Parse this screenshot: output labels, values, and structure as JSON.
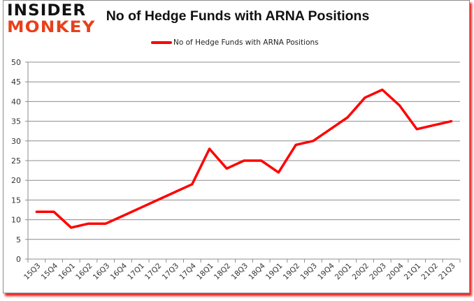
{
  "logo": {
    "line1": "INSIDER",
    "line2": "MONKEY"
  },
  "chart_data": {
    "type": "line",
    "title": "No of Hedge Funds with ARNA Positions",
    "xlabel": "",
    "ylabel": "",
    "ylim": [
      0,
      50
    ],
    "yticks": [
      0,
      5,
      10,
      15,
      20,
      25,
      30,
      35,
      40,
      45,
      50
    ],
    "grid": true,
    "legend_position": "top",
    "categories": [
      "15Q3",
      "15Q4",
      "16Q1",
      "16Q2",
      "16Q3",
      "16Q4",
      "17Q1",
      "17Q2",
      "17Q3",
      "17Q4",
      "18Q1",
      "18Q2",
      "18Q3",
      "18Q4",
      "19Q1",
      "19Q2",
      "19Q3",
      "19Q4",
      "20Q1",
      "20Q2",
      "20Q3",
      "20Q4",
      "21Q1",
      "21Q2",
      "21Q3"
    ],
    "series": [
      {
        "name": "No of Hedge Funds with ARNA Positions",
        "color": "#ff0000",
        "values": [
          12,
          12,
          8,
          9,
          9,
          11,
          13,
          15,
          17,
          19,
          28,
          23,
          25,
          25,
          22,
          29,
          30,
          33,
          36,
          41,
          43,
          39,
          33,
          34,
          35
        ]
      }
    ]
  },
  "colors": {
    "line": "#ff0000",
    "grid": "#8c8c8c",
    "logo_black": "#111111",
    "logo_red": "#e8401c",
    "shadow": "#e60000"
  }
}
